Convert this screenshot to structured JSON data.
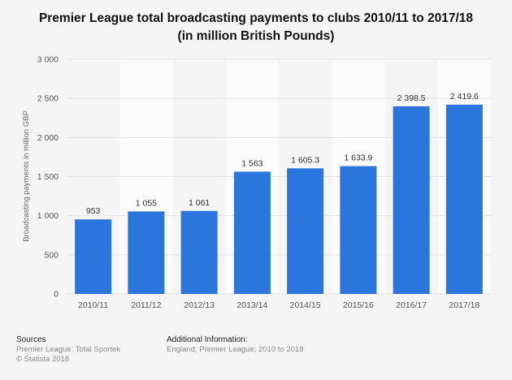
{
  "chart_data": {
    "type": "bar",
    "title": "Premier League total broadcasting payments to clubs 2010/11 to 2017/18 (in million British Pounds)",
    "xlabel": "",
    "ylabel": "Broadcasting payments in million GBP",
    "categories": [
      "2010/11",
      "2011/12",
      "2012/13",
      "2013/14",
      "2014/15",
      "2015/16",
      "2016/17",
      "2017/18"
    ],
    "values": [
      953,
      1055,
      1061,
      1563,
      1605.3,
      1633.9,
      2398.5,
      2419.6
    ],
    "value_labels": [
      "953",
      "1 055",
      "1 061",
      "1 563",
      "1 605.3",
      "1 633.9",
      "2 398.5",
      "2 419.6"
    ],
    "ylim": [
      0,
      3000
    ],
    "yticks": [
      0,
      500,
      1000,
      1500,
      2000,
      2500,
      3000
    ],
    "ytick_labels": [
      "0",
      "500",
      "1 000",
      "1 500",
      "2 000",
      "2 500",
      "3 000"
    ],
    "grid": true,
    "bar_color": "#2a76dd"
  },
  "footer": {
    "sources_title": "Sources",
    "sources_line1": "Premier League; Total Sportek",
    "sources_line2": "© Statista 2018",
    "additional_title": "Additional Information:",
    "additional_line1": "England; Premier League; 2010 to 2018"
  }
}
